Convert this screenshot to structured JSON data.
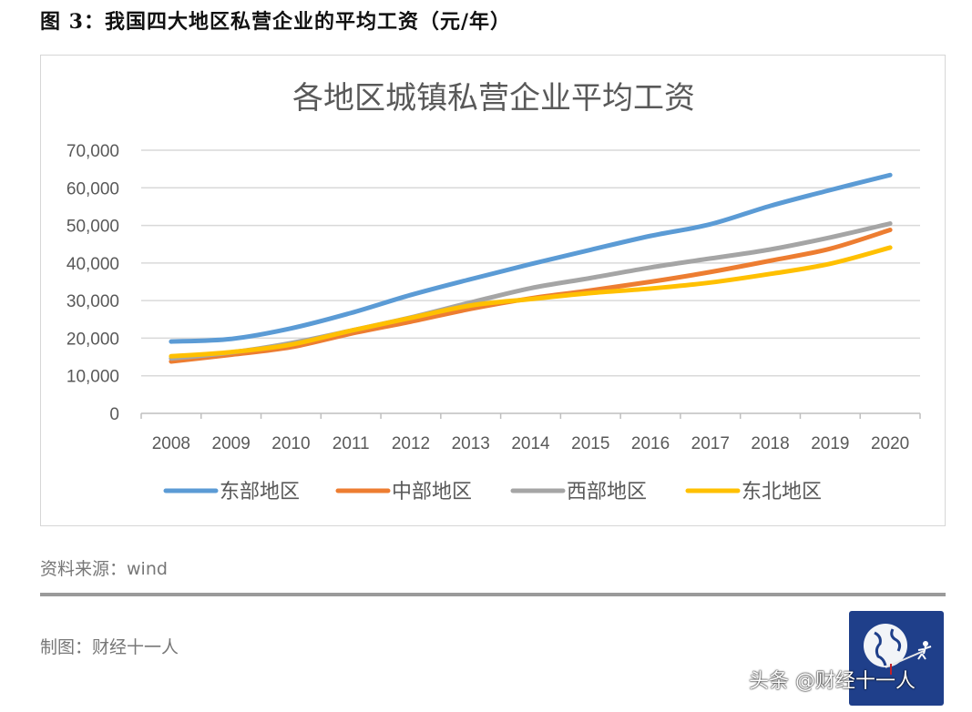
{
  "figure_title": "图 3：我国四大地区私营企业的平均工资（元/年）",
  "source_text": "资料来源：wind",
  "author_text": "制图：财经十一人",
  "watermark_text": "头条 @财经十一人",
  "colors": {
    "east": "#5B9BD5",
    "central": "#ED7D31",
    "west": "#A5A5A5",
    "northeast": "#FFC000",
    "grid": "#d9d9d9",
    "axis_text": "#595959",
    "logo_bg": "#1f3f8a"
  },
  "chart_data": {
    "type": "line",
    "title": "各地区城镇私营企业平均工资",
    "xlabel": "",
    "ylabel": "",
    "ylim": [
      0,
      70000
    ],
    "yticks": [
      "0",
      "10,000",
      "20,000",
      "30,000",
      "40,000",
      "50,000",
      "60,000",
      "70,000"
    ],
    "ytick_values": [
      0,
      10000,
      20000,
      30000,
      40000,
      50000,
      60000,
      70000
    ],
    "grid": true,
    "legend_position": "bottom",
    "categories": [
      "2008",
      "2009",
      "2010",
      "2011",
      "2012",
      "2013",
      "2014",
      "2015",
      "2016",
      "2017",
      "2018",
      "2019",
      "2020"
    ],
    "series": [
      {
        "name": "东部地区",
        "key": "east",
        "values": [
          19100,
          19800,
          22600,
          26700,
          31500,
          35700,
          39700,
          43500,
          47200,
          50300,
          55200,
          59400,
          63400
        ]
      },
      {
        "name": "中部地区",
        "key": "central",
        "values": [
          13800,
          15600,
          17600,
          21200,
          24400,
          27800,
          30600,
          32700,
          35000,
          37600,
          40600,
          43800,
          48800
        ]
      },
      {
        "name": "西部地区",
        "key": "west",
        "values": [
          14600,
          16200,
          18700,
          22000,
          25500,
          29500,
          33300,
          36000,
          38800,
          41200,
          43600,
          46800,
          50500
        ]
      },
      {
        "name": "东北地区",
        "key": "northeast",
        "values": [
          15200,
          16300,
          18300,
          22000,
          25400,
          28700,
          30400,
          32000,
          33200,
          34800,
          37100,
          39800,
          44100
        ]
      }
    ]
  }
}
